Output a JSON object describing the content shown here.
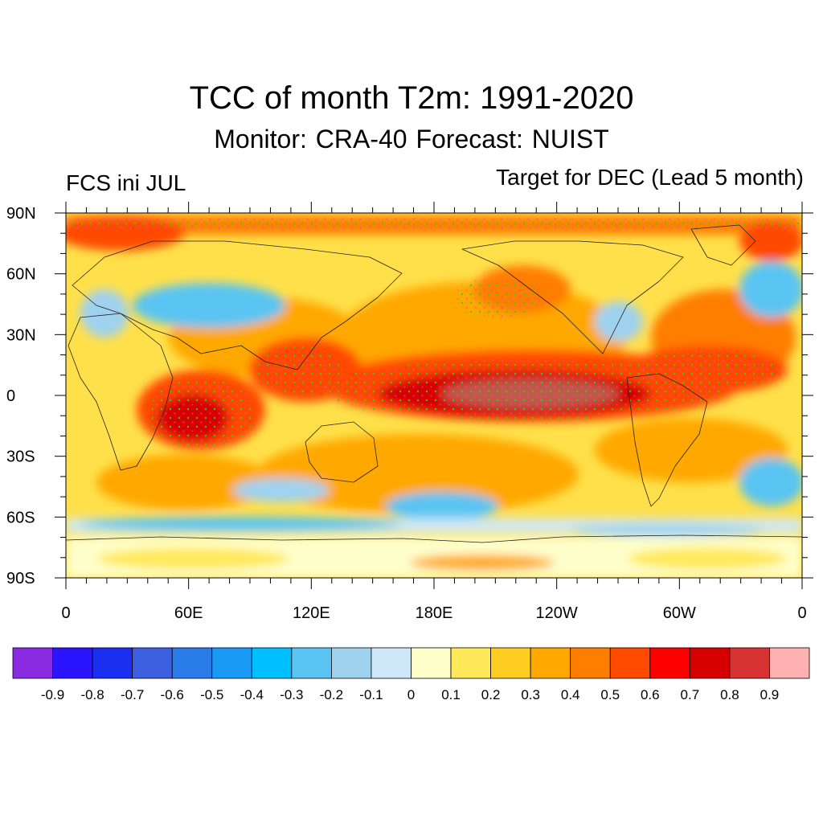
{
  "title": "TCC of month T2m: 1991-2020",
  "subtitle": "Monitor: CRA-40   Forecast: NUIST",
  "left_label": "FCS ini JUL",
  "right_label": "Target for DEC (Lead 5 month)",
  "lat_labels": [
    "90N",
    "60N",
    "30N",
    "0",
    "30S",
    "60S",
    "90S"
  ],
  "lon_labels": [
    "0",
    "60E",
    "120E",
    "180E",
    "120W",
    "60W",
    "0"
  ],
  "colorbar": {
    "colors": [
      "#8a2be2",
      "#2b14ff",
      "#1a2fef",
      "#3d60e0",
      "#2a7de8",
      "#1a99f5",
      "#00bfff",
      "#5ac4f2",
      "#9fd2ef",
      "#cfe8f7",
      "#ffffcc",
      "#ffe95a",
      "#ffcc22",
      "#ffa800",
      "#ff7e00",
      "#ff4a00",
      "#ff0000",
      "#d70000",
      "#d83232",
      "#ffb0b0"
    ],
    "labels": [
      "-0.9",
      "-0.8",
      "-0.7",
      "-0.6",
      "-0.5",
      "-0.4",
      "-0.3",
      "-0.2",
      "-0.1",
      "0",
      "0.1",
      "0.2",
      "0.3",
      "0.4",
      "0.5",
      "0.6",
      "0.7",
      "0.8",
      "0.9"
    ]
  },
  "stipple_color": "#33cc33"
}
